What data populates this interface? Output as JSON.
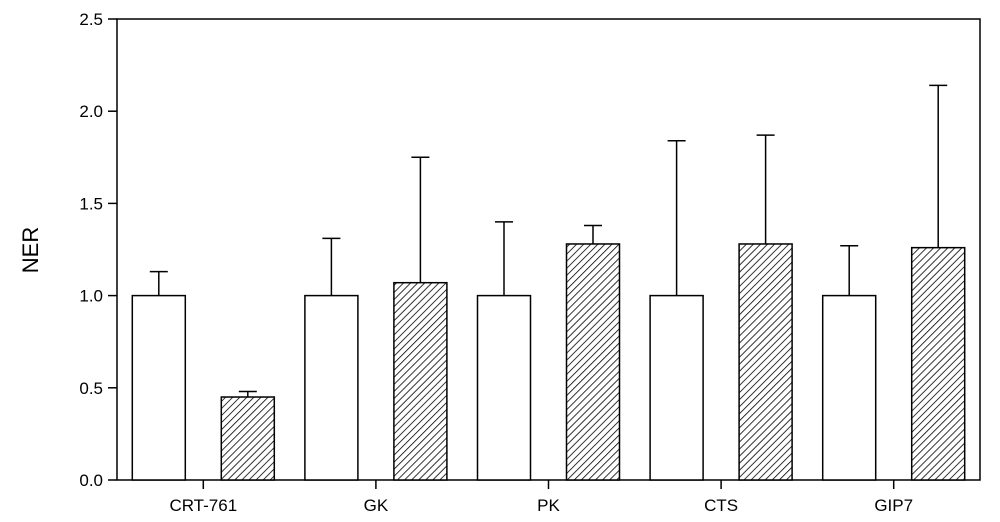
{
  "chart_data": {
    "type": "bar",
    "title": "",
    "xlabel": "",
    "ylabel": "NER",
    "ylim": [
      0,
      2.5
    ],
    "yticks": [
      "0.0",
      "0.5",
      "1.0",
      "1.5",
      "2.0",
      "2.5"
    ],
    "categories": [
      "CRT-761",
      "GK",
      "PK",
      "CTS",
      "GIP7"
    ],
    "grid": false,
    "series": [
      {
        "style": "open",
        "values": [
          1.0,
          1.0,
          1.0,
          1.0,
          1.0
        ],
        "error_upper": [
          1.13,
          1.31,
          1.4,
          1.84,
          1.27
        ]
      },
      {
        "style": "hatched",
        "values": [
          0.45,
          1.07,
          1.28,
          1.28,
          1.26
        ],
        "error_upper": [
          0.48,
          1.75,
          1.38,
          1.87,
          2.14
        ]
      }
    ]
  }
}
